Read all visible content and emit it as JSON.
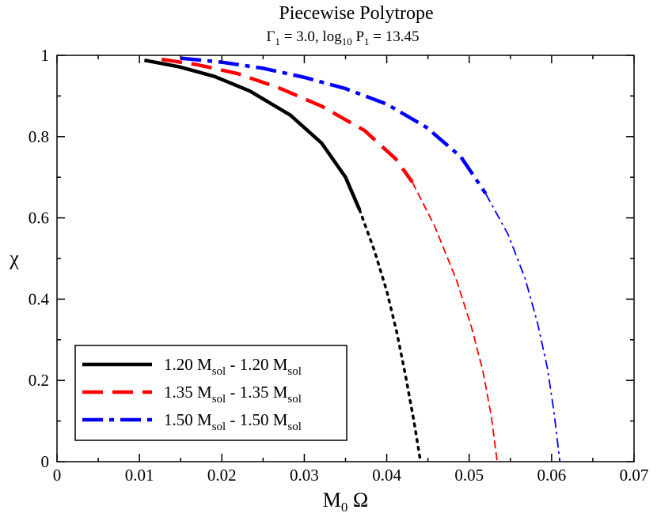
{
  "chart_data": {
    "type": "line",
    "title": "Piecewise Polytrope",
    "subtitle": {
      "gamma_symbol": "Γ",
      "gamma_sub": "1",
      "gamma_value": " = 3.0,  log",
      "log_sub": "10",
      "p_symbol": " P",
      "p_sub": "1",
      "p_value": " = 13.45"
    },
    "xlabel": {
      "main": "M",
      "sub": "0",
      "rest": " Ω"
    },
    "ylabel": "χ",
    "xlim": [
      0,
      0.07
    ],
    "ylim": [
      0,
      1
    ],
    "xticks": [
      "0",
      "0.01",
      "0.02",
      "0.03",
      "0.04",
      "0.05",
      "0.06",
      "0.07"
    ],
    "yticks": [
      "0",
      "0.2",
      "0.4",
      "0.6",
      "0.8",
      "1"
    ],
    "grid": false,
    "legend_position": "bottom-left",
    "series": [
      {
        "name": "1.20 Msol - 1.20 Msol",
        "legend": {
          "a": "1.20 M",
          "a_sub": "sol",
          "b": " - 1.20 M",
          "b_sub": "sol"
        },
        "color": "#000000",
        "style": "solid",
        "points": [
          [
            0.0106,
            0.988
          ],
          [
            0.0148,
            0.972
          ],
          [
            0.0191,
            0.948
          ],
          [
            0.0234,
            0.912
          ],
          [
            0.0283,
            0.853
          ],
          [
            0.0321,
            0.784
          ],
          [
            0.035,
            0.7
          ],
          [
            0.0367,
            0.62
          ]
        ],
        "extension_style": "dotted",
        "extension": [
          [
            0.0367,
            0.62
          ],
          [
            0.0385,
            0.52
          ],
          [
            0.04,
            0.42
          ],
          [
            0.0412,
            0.32
          ],
          [
            0.0423,
            0.21
          ],
          [
            0.0433,
            0.1
          ],
          [
            0.0441,
            0.0
          ]
        ]
      },
      {
        "name": "1.35 Msol - 1.35 Msol",
        "legend": {
          "a": "1.35 M",
          "a_sub": "sol",
          "b": " - 1.35 M",
          "b_sub": "sol"
        },
        "color": "#ff0000",
        "style": "dashed",
        "points": [
          [
            0.0127,
            0.99
          ],
          [
            0.017,
            0.977
          ],
          [
            0.0219,
            0.955
          ],
          [
            0.0269,
            0.92
          ],
          [
            0.0321,
            0.875
          ],
          [
            0.0373,
            0.815
          ],
          [
            0.0411,
            0.745
          ],
          [
            0.0431,
            0.688
          ]
        ],
        "extension_style": "thin-dashed",
        "extension": [
          [
            0.0431,
            0.688
          ],
          [
            0.0458,
            0.58
          ],
          [
            0.0484,
            0.45
          ],
          [
            0.0503,
            0.33
          ],
          [
            0.0517,
            0.22
          ],
          [
            0.0527,
            0.11
          ],
          [
            0.0534,
            0.0
          ]
        ]
      },
      {
        "name": "1.50 Msol - 1.50 Msol",
        "legend": {
          "a": "1.50 M",
          "a_sub": "sol",
          "b": " - 1.50 M",
          "b_sub": "sol"
        },
        "color": "#0000ff",
        "style": "dash-dot",
        "points": [
          [
            0.015,
            0.993
          ],
          [
            0.02,
            0.983
          ],
          [
            0.025,
            0.968
          ],
          [
            0.03,
            0.946
          ],
          [
            0.035,
            0.918
          ],
          [
            0.04,
            0.88
          ],
          [
            0.0448,
            0.823
          ],
          [
            0.049,
            0.75
          ],
          [
            0.052,
            0.66
          ]
        ],
        "extension_style": "thin-dash-dot",
        "extension": [
          [
            0.052,
            0.66
          ],
          [
            0.0547,
            0.56
          ],
          [
            0.0568,
            0.45
          ],
          [
            0.0583,
            0.34
          ],
          [
            0.0595,
            0.23
          ],
          [
            0.0603,
            0.12
          ],
          [
            0.061,
            0.0
          ]
        ]
      }
    ]
  }
}
